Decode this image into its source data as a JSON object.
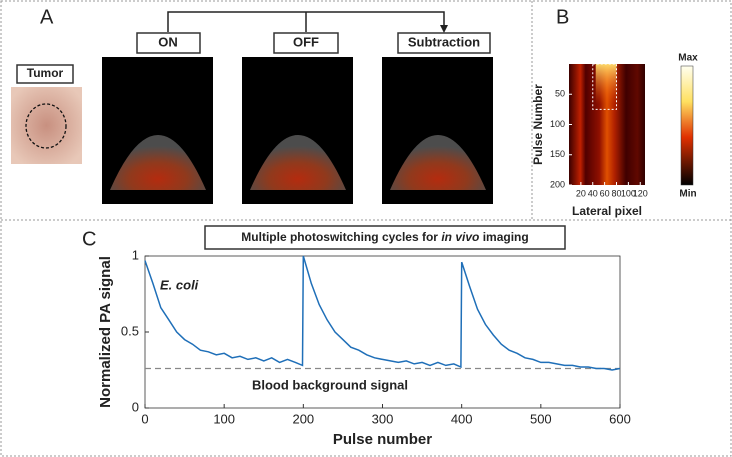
{
  "panel_labels": [
    "A",
    "B",
    "C"
  ],
  "panel_a": {
    "tumor_label": "Tumor",
    "states": [
      "ON",
      "OFF",
      "Subtraction"
    ]
  },
  "chart_data": [
    {
      "type": "heatmap",
      "xlabel": "Lateral pixel",
      "ylabel": "Pulse Number",
      "xlim": [
        0,
        128
      ],
      "xticks": [
        20,
        40,
        60,
        80,
        100,
        120
      ],
      "ylim": [
        0,
        200
      ],
      "yticks": [
        50,
        100,
        150,
        200
      ],
      "colorbar_labels": [
        "Max",
        "Min"
      ]
    },
    {
      "type": "line",
      "title_parts": [
        {
          "text": "Multiple photoswitching cycles for",
          "italic": false
        },
        {
          "text": "in vivo",
          "italic": true
        },
        {
          "text": "imaging",
          "italic": false
        }
      ],
      "xlabel": "Pulse number",
      "ylabel": "Normalized PA signal",
      "x": [
        0,
        10,
        20,
        30,
        40,
        50,
        60,
        70,
        80,
        90,
        100,
        110,
        120,
        130,
        140,
        150,
        160,
        170,
        180,
        190,
        199,
        200,
        210,
        220,
        230,
        240,
        250,
        260,
        270,
        280,
        290,
        300,
        310,
        320,
        330,
        340,
        350,
        360,
        370,
        380,
        390,
        399,
        400,
        410,
        420,
        430,
        440,
        450,
        460,
        470,
        480,
        490,
        500,
        510,
        520,
        530,
        540,
        550,
        560,
        570,
        580,
        590,
        600
      ],
      "values": [
        0.97,
        0.82,
        0.66,
        0.58,
        0.5,
        0.45,
        0.42,
        0.38,
        0.37,
        0.35,
        0.36,
        0.33,
        0.34,
        0.32,
        0.33,
        0.31,
        0.33,
        0.3,
        0.32,
        0.3,
        0.28,
        1.0,
        0.82,
        0.68,
        0.58,
        0.5,
        0.45,
        0.4,
        0.38,
        0.35,
        0.33,
        0.32,
        0.31,
        0.3,
        0.31,
        0.29,
        0.3,
        0.28,
        0.3,
        0.28,
        0.29,
        0.27,
        0.96,
        0.8,
        0.65,
        0.55,
        0.48,
        0.42,
        0.38,
        0.36,
        0.33,
        0.32,
        0.3,
        0.3,
        0.29,
        0.28,
        0.28,
        0.27,
        0.27,
        0.26,
        0.26,
        0.25,
        0.26
      ],
      "color": "#1f6fb8",
      "xlim": [
        0,
        600
      ],
      "xticks": [
        0,
        100,
        200,
        300,
        400,
        500,
        600
      ],
      "ylim": [
        0,
        1
      ],
      "yticks": [
        0,
        0.5,
        1
      ],
      "reference_line": {
        "value": 0.26,
        "label": "Blood background signal",
        "color": "#888888"
      },
      "annotations": [
        "E. coli"
      ]
    }
  ]
}
